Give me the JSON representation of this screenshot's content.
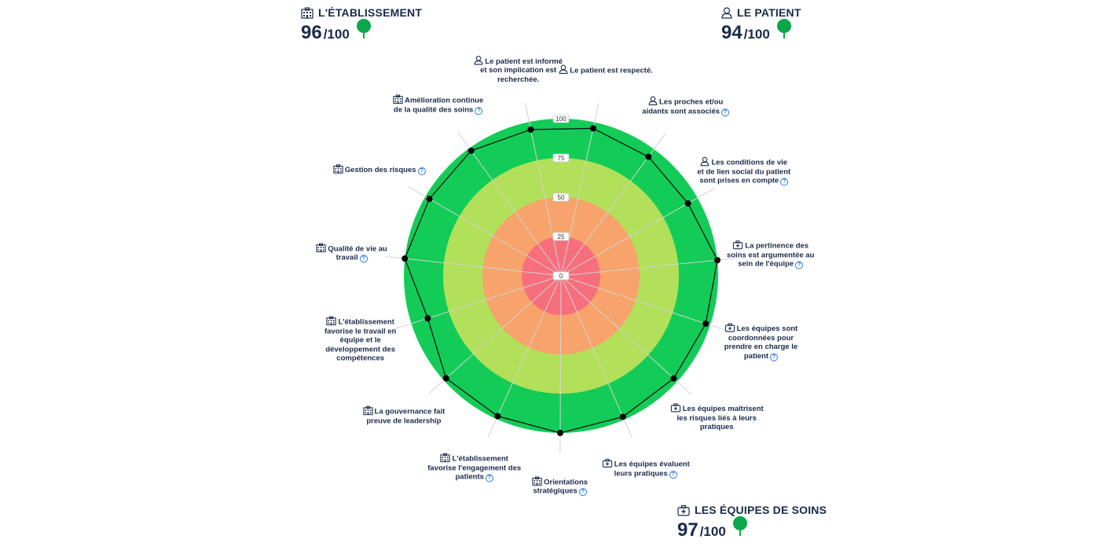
{
  "scores": {
    "etablissement": {
      "title": "L'ÉTABLISSEMENT",
      "value": "96",
      "max": "/100"
    },
    "patient": {
      "title": "LE PATIENT",
      "value": "94",
      "max": "/100"
    },
    "equipes": {
      "title": "LES ÉQUIPES DE SOINS",
      "value": "97",
      "max": "/100"
    }
  },
  "colors": {
    "band_0_25": "#f76f7d",
    "band_25_50": "#f7a36b",
    "band_50_75": "#b2e05a",
    "band_75_100": "#12cc57",
    "tree": "#0aa84a",
    "text": "#1b2a4a",
    "help": "#2a7ad6"
  },
  "chart_data": {
    "type": "radar",
    "rlim": [
      0,
      100
    ],
    "ticks": [
      "0",
      "25",
      "50",
      "75",
      "100"
    ],
    "axes": [
      {
        "label": "Le patient est informé et son implication est recherchée.",
        "category": "patient",
        "help": false,
        "value": 95
      },
      {
        "label": "Le patient est respecté.",
        "category": "patient",
        "help": false,
        "value": 96
      },
      {
        "label": "Les proches et/ou aidants sont associés",
        "category": "patient",
        "help": true,
        "value": 94
      },
      {
        "label": "Les conditions de vie et de lien social du patient sont prises en compte",
        "category": "patient",
        "help": true,
        "value": 93
      },
      {
        "label": "La pertinence des soins est argumentée au sein de l'équipe",
        "category": "equipes",
        "help": true,
        "value": 100
      },
      {
        "label": "Les équipes sont coordonnées pour prendre en charge le patient",
        "category": "equipes",
        "help": true,
        "value": 97
      },
      {
        "label": "Les équipes maîtrisent les risques liés à leurs pratiques",
        "category": "equipes",
        "help": false,
        "value": 97
      },
      {
        "label": "Les équipes évaluent leurs pratiques",
        "category": "equipes",
        "help": true,
        "value": 98
      },
      {
        "label": "Orientations stratégiques",
        "category": "etablissement",
        "help": true,
        "value": 100
      },
      {
        "label": "L'établissement favorise l'engagement des patients",
        "category": "etablissement",
        "help": true,
        "value": 98
      },
      {
        "label": "La gouvernance fait preuve de leadership",
        "category": "etablissement",
        "help": false,
        "value": 98
      },
      {
        "label": "L'établissement favorise le travail en équipe et le développement des compétences",
        "category": "etablissement",
        "help": false,
        "value": 89
      },
      {
        "label": "Qualité de vie au travail",
        "category": "etablissement",
        "help": true,
        "value": 100
      },
      {
        "label": "Gestion des risques",
        "category": "etablissement",
        "help": true,
        "value": 97
      },
      {
        "label": "Amélioration continue de la qualité des soins",
        "category": "etablissement",
        "help": true,
        "value": 98
      }
    ]
  }
}
